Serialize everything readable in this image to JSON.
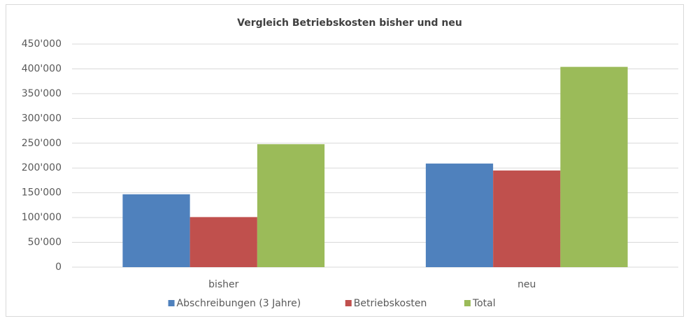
{
  "chart_data": {
    "type": "bar",
    "title": "Vergleich Betriebskosten bisher und neu",
    "categories": [
      "bisher",
      "neu"
    ],
    "series": [
      {
        "name": "Abschreibungen (3 Jahre)",
        "color": "#4f81bd",
        "values": [
          147000,
          209000
        ]
      },
      {
        "name": "Betriebskosten",
        "color": "#c0504d",
        "values": [
          101000,
          195000
        ]
      },
      {
        "name": "Total",
        "color": "#9bbb59",
        "values": [
          248000,
          404000
        ]
      }
    ],
    "ylim": [
      0,
      450000
    ],
    "yticks": [
      0,
      {
        "value": 50000,
        "label": "50'000"
      },
      {
        "value": 100000,
        "label": "100'000"
      },
      {
        "value": 150000,
        "label": "150'000"
      },
      {
        "value": 200000,
        "label": "200'000"
      },
      {
        "value": 250000,
        "label": "250'000"
      },
      {
        "value": 300000,
        "label": "300'000"
      },
      {
        "value": 350000,
        "label": "350'000"
      },
      {
        "value": 400000,
        "label": "400'000"
      },
      {
        "value": 450000,
        "label": "450'000"
      }
    ],
    "grid": true,
    "legend": "bottom"
  }
}
